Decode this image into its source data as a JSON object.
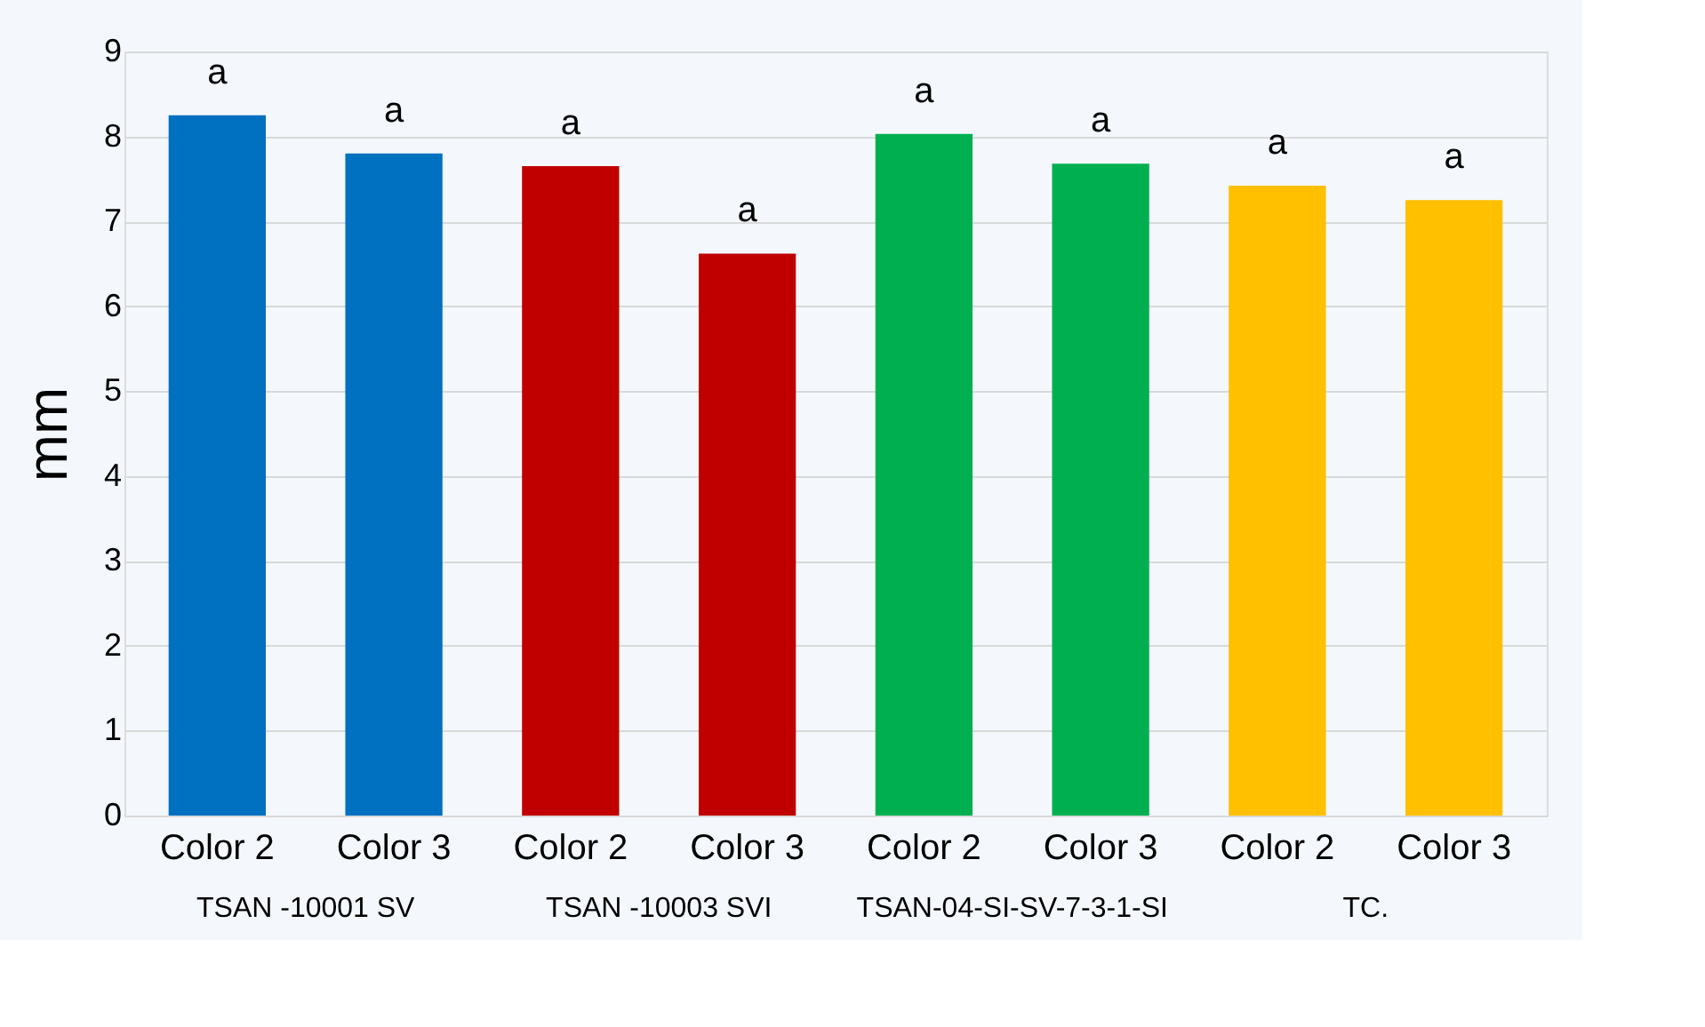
{
  "chart_data": {
    "type": "bar",
    "ylabel": "mm",
    "categories": [
      "Color 2",
      "Color 3",
      "Color 2",
      "Color 3",
      "Color 2",
      "Color 3",
      "Color 2",
      "Color 3"
    ],
    "values": [
      8.25,
      7.8,
      7.65,
      6.62,
      8.03,
      7.68,
      7.42,
      7.25
    ],
    "colors": [
      "#0070c0",
      "#0070c0",
      "#c00000",
      "#c00000",
      "#00b050",
      "#00b050",
      "#ffc000",
      "#ffc000"
    ],
    "value_labels": [
      "a",
      "a",
      "a",
      "a",
      "a",
      "a",
      "a",
      "a"
    ],
    "annotations": [
      "TSAN -10001 SV",
      "TSAN -10003 SVI",
      "TSAN-04-SI-SV-7-3-1-SI",
      "TC."
    ],
    "ylim": [
      0,
      9
    ],
    "yticks": [
      0,
      1,
      2,
      3,
      4,
      5,
      6,
      7,
      8,
      9
    ],
    "grid": "y"
  }
}
